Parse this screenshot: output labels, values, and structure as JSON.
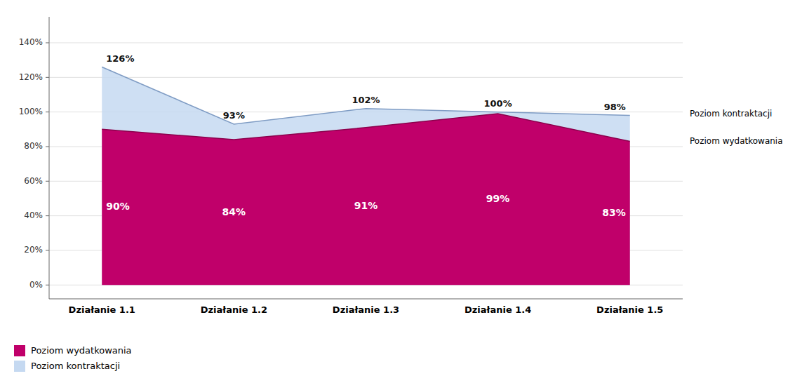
{
  "chart_data": {
    "type": "area",
    "stacked": false,
    "categories": [
      "Działanie 1.1",
      "Działanie 1.2",
      "Działanie 1.3",
      "Działanie 1.4",
      "Działanie 1.5"
    ],
    "series": [
      {
        "name": "Poziom wydatkowania",
        "color": "#C0006A",
        "values": [
          90,
          84,
          91,
          99,
          83
        ],
        "value_labels": [
          "90%",
          "84%",
          "91%",
          "99%",
          "83%"
        ]
      },
      {
        "name": "Poziom kontraktacji",
        "color": "#C5D9F1",
        "values": [
          126,
          93,
          102,
          100,
          98
        ],
        "value_labels": [
          "126%",
          "93%",
          "102%",
          "100%",
          "98%"
        ]
      }
    ],
    "ylim": [
      -8,
      155
    ],
    "yticks": [
      {
        "value": 0,
        "label": "0%"
      },
      {
        "value": 20,
        "label": "20%"
      },
      {
        "value": 40,
        "label": "40%"
      },
      {
        "value": 60,
        "label": "60%"
      },
      {
        "value": 80,
        "label": "80%"
      },
      {
        "value": 100,
        "label": "100%"
      },
      {
        "value": 120,
        "label": "120%"
      },
      {
        "value": 140,
        "label": "140%"
      }
    ],
    "grid": true,
    "data_labels": true,
    "legend": "lower left"
  }
}
